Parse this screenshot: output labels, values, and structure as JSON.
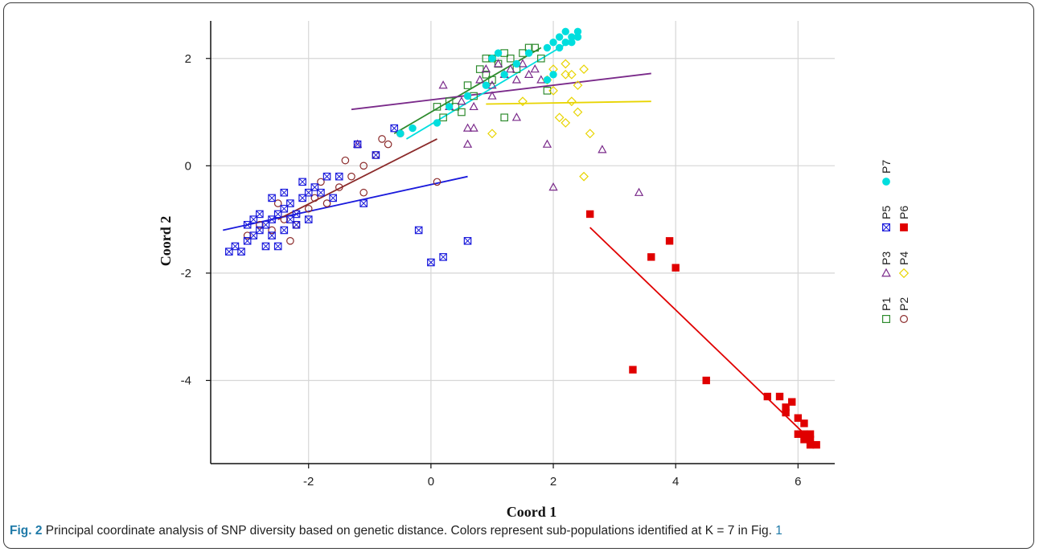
{
  "figure_label": "Fig. 2",
  "caption_text": "Principal coordinate analysis of SNP diversity based on genetic distance. Colors represent sub-populations identified at K = 7 in Fig.",
  "caption_ref": "1",
  "chart_data": {
    "type": "scatter",
    "title": "",
    "xlabel": "Coord 1",
    "ylabel": "Coord 2",
    "xlim": [
      -3.6,
      6.6
    ],
    "ylim": [
      -5.55,
      2.7
    ],
    "xticks": [
      -2,
      0,
      2,
      4,
      6
    ],
    "yticks": [
      -4,
      -2,
      0,
      2
    ],
    "grid": true,
    "legend_position": "right, rotated",
    "series": [
      {
        "name": "P1",
        "marker": "square-open",
        "color": "#2e8b2e",
        "points": [
          [
            0.1,
            1.1
          ],
          [
            0.3,
            1.2
          ],
          [
            0.5,
            1.0
          ],
          [
            0.6,
            1.5
          ],
          [
            0.7,
            1.3
          ],
          [
            0.8,
            1.8
          ],
          [
            0.9,
            1.7
          ],
          [
            1.0,
            2.0
          ],
          [
            1.1,
            1.9
          ],
          [
            1.2,
            2.1
          ],
          [
            1.3,
            2.0
          ],
          [
            1.4,
            1.8
          ],
          [
            1.5,
            2.1
          ],
          [
            1.6,
            2.2
          ],
          [
            1.7,
            2.2
          ],
          [
            1.8,
            2.0
          ],
          [
            0.2,
            0.9
          ],
          [
            0.4,
            1.1
          ],
          [
            1.2,
            0.9
          ],
          [
            1.9,
            1.4
          ],
          [
            1.0,
            1.6
          ],
          [
            0.9,
            2.0
          ]
        ],
        "trend": [
          [
            -0.6,
            0.6
          ],
          [
            1.8,
            2.2
          ]
        ]
      },
      {
        "name": "P2",
        "marker": "circle-open",
        "color": "#8b2a2a",
        "points": [
          [
            -3.0,
            -1.3
          ],
          [
            -2.8,
            -1.1
          ],
          [
            -2.6,
            -1.2
          ],
          [
            -2.4,
            -1.0
          ],
          [
            -2.2,
            -1.1
          ],
          [
            -2.0,
            -0.8
          ],
          [
            -1.9,
            -0.6
          ],
          [
            -1.7,
            -0.7
          ],
          [
            -1.5,
            -0.4
          ],
          [
            -1.3,
            -0.2
          ],
          [
            -1.1,
            0.0
          ],
          [
            -0.9,
            0.2
          ],
          [
            -0.7,
            0.4
          ],
          [
            -0.5,
            0.6
          ],
          [
            -1.1,
            -0.5
          ],
          [
            0.1,
            -0.3
          ],
          [
            -2.3,
            -1.4
          ],
          [
            -2.5,
            -0.7
          ],
          [
            -1.8,
            -0.3
          ],
          [
            -1.4,
            0.1
          ],
          [
            -0.8,
            0.5
          ]
        ],
        "trend": [
          [
            -2.5,
            -1.0
          ],
          [
            0.1,
            0.5
          ]
        ]
      },
      {
        "name": "P3",
        "marker": "triangle-open",
        "color": "#7a2a8a",
        "points": [
          [
            0.2,
            1.5
          ],
          [
            0.5,
            1.2
          ],
          [
            0.6,
            0.7
          ],
          [
            0.7,
            0.7
          ],
          [
            0.8,
            1.6
          ],
          [
            0.9,
            1.8
          ],
          [
            1.0,
            1.5
          ],
          [
            1.1,
            1.9
          ],
          [
            1.2,
            1.7
          ],
          [
            1.3,
            1.8
          ],
          [
            1.4,
            1.6
          ],
          [
            1.5,
            1.9
          ],
          [
            1.6,
            1.7
          ],
          [
            1.7,
            1.8
          ],
          [
            1.8,
            1.6
          ],
          [
            0.6,
            0.4
          ],
          [
            1.4,
            0.9
          ],
          [
            1.9,
            0.4
          ],
          [
            2.0,
            -0.4
          ],
          [
            2.8,
            0.3
          ],
          [
            3.4,
            -0.5
          ],
          [
            -1.2,
            0.4
          ],
          [
            0.3,
            1.1
          ],
          [
            0.7,
            1.1
          ],
          [
            1.0,
            1.3
          ]
        ],
        "trend": [
          [
            -1.3,
            1.05
          ],
          [
            3.6,
            1.72
          ]
        ]
      },
      {
        "name": "P4",
        "marker": "diamond-open",
        "color": "#e8d400",
        "points": [
          [
            1.9,
            1.6
          ],
          [
            2.0,
            1.8
          ],
          [
            2.2,
            1.9
          ],
          [
            2.3,
            1.7
          ],
          [
            2.4,
            1.5
          ],
          [
            2.5,
            1.8
          ],
          [
            2.0,
            1.4
          ],
          [
            2.1,
            0.9
          ],
          [
            2.2,
            0.8
          ],
          [
            2.3,
            1.2
          ],
          [
            2.4,
            1.0
          ],
          [
            2.6,
            0.6
          ],
          [
            2.5,
            -0.2
          ],
          [
            1.0,
            0.6
          ],
          [
            1.5,
            1.2
          ],
          [
            2.2,
            1.7
          ]
        ],
        "trend": [
          [
            0.9,
            1.15
          ],
          [
            3.6,
            1.2
          ]
        ]
      },
      {
        "name": "P5",
        "marker": "box-x",
        "color": "#1a1adc",
        "points": [
          [
            -3.3,
            -1.6
          ],
          [
            -3.1,
            -1.6
          ],
          [
            -3.0,
            -1.4
          ],
          [
            -2.9,
            -1.3
          ],
          [
            -2.8,
            -1.2
          ],
          [
            -2.7,
            -1.1
          ],
          [
            -2.6,
            -1.0
          ],
          [
            -2.5,
            -0.9
          ],
          [
            -2.4,
            -0.8
          ],
          [
            -2.3,
            -0.7
          ],
          [
            -2.2,
            -0.9
          ],
          [
            -2.1,
            -0.6
          ],
          [
            -2.0,
            -0.5
          ],
          [
            -1.9,
            -0.4
          ],
          [
            -1.8,
            -0.5
          ],
          [
            -2.8,
            -0.9
          ],
          [
            -2.6,
            -1.3
          ],
          [
            -2.4,
            -1.2
          ],
          [
            -2.2,
            -1.1
          ],
          [
            -2.0,
            -1.0
          ],
          [
            -2.7,
            -1.5
          ],
          [
            -2.5,
            -1.5
          ],
          [
            -1.6,
            -0.6
          ],
          [
            -1.5,
            -0.2
          ],
          [
            -1.2,
            0.4
          ],
          [
            -0.9,
            0.2
          ],
          [
            -0.2,
            -1.2
          ],
          [
            0.0,
            -1.8
          ],
          [
            0.2,
            -1.7
          ],
          [
            0.6,
            -1.4
          ],
          [
            -1.1,
            -0.7
          ],
          [
            -0.6,
            0.7
          ],
          [
            -2.9,
            -1.0
          ],
          [
            -3.2,
            -1.5
          ],
          [
            -2.1,
            -0.3
          ],
          [
            -1.7,
            -0.2
          ],
          [
            -2.3,
            -1.0
          ],
          [
            -2.6,
            -0.6
          ],
          [
            -3.0,
            -1.1
          ],
          [
            -2.4,
            -0.5
          ]
        ],
        "trend": [
          [
            -3.4,
            -1.2
          ],
          [
            0.6,
            -0.2
          ]
        ]
      },
      {
        "name": "P6",
        "marker": "square-filled",
        "color": "#e00000",
        "points": [
          [
            2.6,
            -0.9
          ],
          [
            3.3,
            -3.8
          ],
          [
            3.6,
            -1.7
          ],
          [
            3.9,
            -1.4
          ],
          [
            4.0,
            -1.9
          ],
          [
            4.5,
            -4.0
          ],
          [
            5.5,
            -4.3
          ],
          [
            5.7,
            -4.3
          ],
          [
            5.8,
            -4.5
          ],
          [
            5.9,
            -4.4
          ],
          [
            6.0,
            -4.7
          ],
          [
            6.1,
            -4.8
          ],
          [
            6.1,
            -5.0
          ],
          [
            6.2,
            -5.1
          ],
          [
            6.2,
            -5.2
          ],
          [
            6.3,
            -5.2
          ],
          [
            6.1,
            -5.1
          ],
          [
            6.2,
            -5.0
          ],
          [
            5.8,
            -4.6
          ],
          [
            6.0,
            -5.0
          ]
        ],
        "trend": [
          [
            2.6,
            -1.15
          ],
          [
            6.2,
            -5.1
          ]
        ]
      },
      {
        "name": "P7",
        "marker": "circle-filled",
        "color": "#00dede",
        "points": [
          [
            -0.5,
            0.6
          ],
          [
            -0.3,
            0.7
          ],
          [
            0.1,
            0.8
          ],
          [
            0.3,
            1.1
          ],
          [
            0.6,
            1.3
          ],
          [
            0.9,
            1.5
          ],
          [
            1.2,
            1.7
          ],
          [
            1.4,
            1.9
          ],
          [
            1.6,
            2.1
          ],
          [
            1.9,
            2.2
          ],
          [
            2.0,
            2.3
          ],
          [
            2.1,
            2.4
          ],
          [
            2.2,
            2.5
          ],
          [
            2.3,
            2.4
          ],
          [
            2.4,
            2.5
          ],
          [
            2.1,
            2.2
          ],
          [
            2.2,
            2.3
          ],
          [
            2.3,
            2.3
          ],
          [
            2.0,
            1.7
          ],
          [
            1.9,
            1.6
          ],
          [
            1.0,
            2.0
          ],
          [
            1.1,
            2.1
          ],
          [
            2.4,
            2.4
          ]
        ],
        "trend": [
          [
            -0.4,
            0.5
          ],
          [
            2.4,
            2.4
          ]
        ]
      }
    ]
  }
}
